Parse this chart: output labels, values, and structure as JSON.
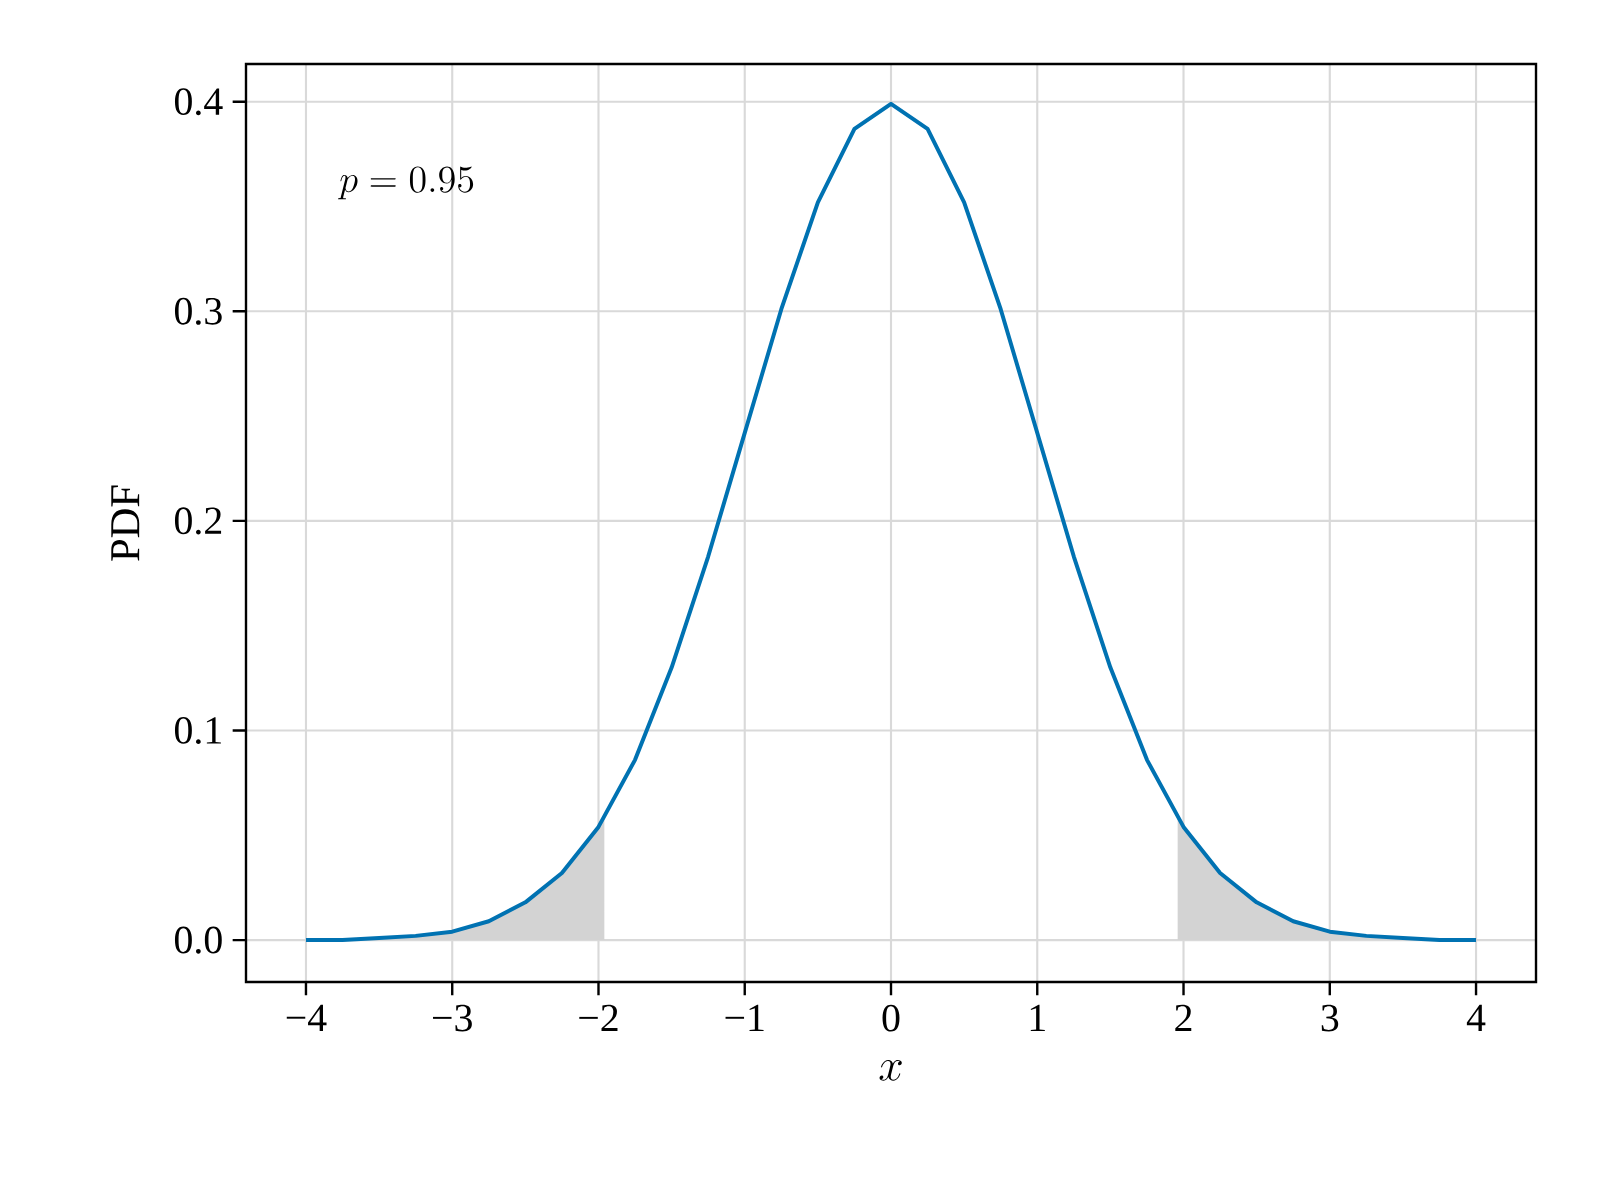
{
  "chart_data": {
    "type": "line",
    "xlabel": "x",
    "ylabel": "PDF",
    "annotations": [
      "p = 0.95"
    ],
    "x": [
      -4,
      -3.75,
      -3.5,
      -3.25,
      -3,
      -2.75,
      -2.5,
      -2.25,
      -2,
      -1.75,
      -1.5,
      -1.25,
      -1,
      -0.75,
      -0.5,
      -0.25,
      0,
      0.25,
      0.5,
      0.75,
      1,
      1.25,
      1.5,
      1.75,
      2,
      2.25,
      2.5,
      2.75,
      3,
      3.25,
      3.5,
      3.75,
      4
    ],
    "series": [
      {
        "type": "area",
        "color": "#d3d3d3",
        "x": [
          -4,
          -3.75,
          -3.5,
          -3.25,
          -3,
          -2.75,
          -2.5,
          -2.25,
          -2,
          -1.96
        ],
        "values": [
          0.0,
          0.0,
          0.001,
          0.002,
          0.004,
          0.009,
          0.018,
          0.032,
          0.054,
          0.058
        ]
      },
      {
        "type": "area",
        "color": "#d3d3d3",
        "x": [
          1.96,
          2,
          2.25,
          2.5,
          2.75,
          3,
          3.25,
          3.5,
          3.75,
          4
        ],
        "values": [
          0.058,
          0.054,
          0.032,
          0.018,
          0.009,
          0.004,
          0.002,
          0.001,
          0.0,
          0.0
        ]
      },
      {
        "color": "#0072b2",
        "values": [
          0.0,
          0.0,
          0.001,
          0.002,
          0.004,
          0.009,
          0.018,
          0.032,
          0.054,
          0.086,
          0.13,
          0.183,
          0.242,
          0.301,
          0.352,
          0.387,
          0.399,
          0.387,
          0.352,
          0.301,
          0.242,
          0.183,
          0.13,
          0.086,
          0.054,
          0.032,
          0.018,
          0.009,
          0.004,
          0.002,
          0.001,
          0.0,
          0.0
        ]
      }
    ],
    "xlim": [
      -4.41,
      4.41
    ],
    "ylim": [
      -0.02,
      0.418
    ],
    "xticks": [
      {
        "value": -4,
        "label": "−4"
      },
      {
        "value": -3,
        "label": "−3"
      },
      {
        "value": -2,
        "label": "−2"
      },
      {
        "value": -1,
        "label": "−1"
      },
      0,
      1,
      2,
      3,
      4
    ],
    "yticks": [
      {
        "value": 0,
        "label": "0.0"
      },
      0.1,
      0.2,
      0.3,
      0.4
    ],
    "grid": true
  }
}
